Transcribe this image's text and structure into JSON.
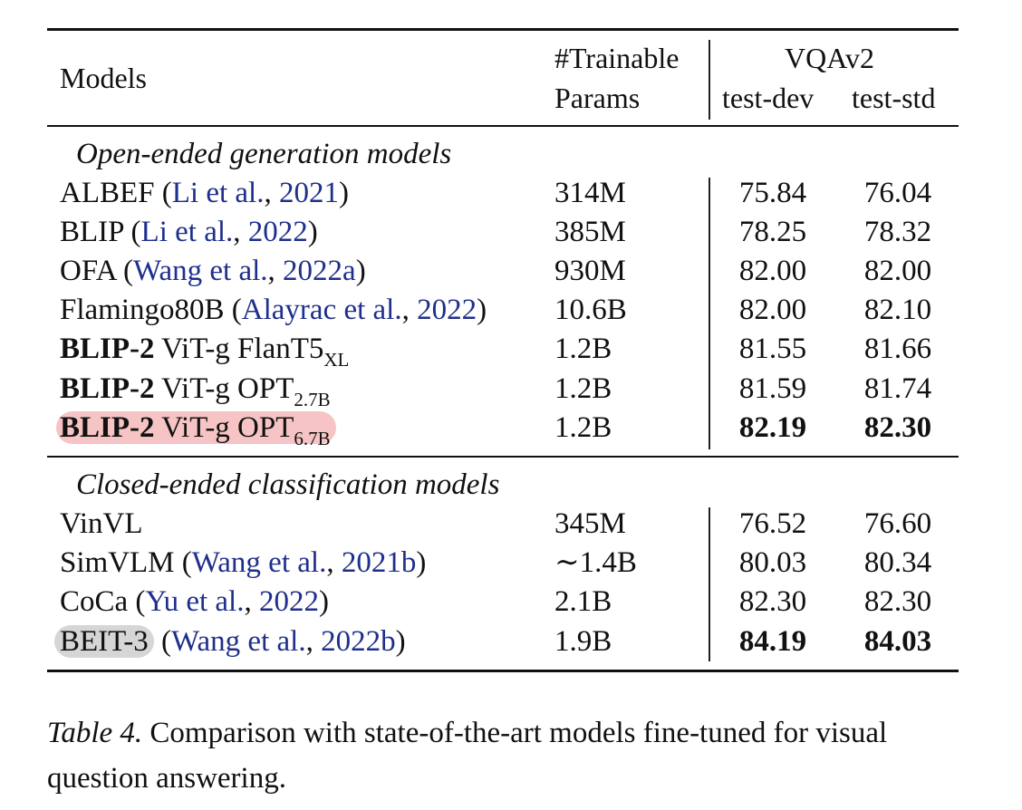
{
  "table": {
    "header": {
      "models": "Models",
      "params_line1": "#Trainable",
      "params_line2": "Params",
      "vqa": "VQAv2",
      "test_dev": "test-dev",
      "test_std": "test-std"
    },
    "groups": [
      {
        "title": "Open-ended generation models",
        "rows": [
          {
            "name": "ALBEF",
            "open": " (",
            "cite": "Li et al.",
            "sep": ", ",
            "year": "2021",
            "close": ")",
            "params": "314M",
            "dev": "75.84",
            "std": "76.04"
          },
          {
            "name": "BLIP",
            "open": " (",
            "cite": "Li et al.",
            "sep": ", ",
            "year": "2022",
            "close": ")",
            "params": "385M",
            "dev": "78.25",
            "std": "78.32"
          },
          {
            "name": "OFA",
            "open": " (",
            "cite": "Wang et al.",
            "sep": ", ",
            "year": "2022a",
            "close": ")",
            "params": "930M",
            "dev": "82.00",
            "std": "82.00"
          },
          {
            "name": "Flamingo80B",
            "open": " (",
            "cite": "Alayrac et al.",
            "sep": ", ",
            "year": "2022",
            "close": ")",
            "params": "10.6B",
            "dev": "82.00",
            "std": "82.10"
          },
          {
            "bold": "BLIP-2",
            "rest": " ViT-g FlanT5",
            "sub": "XL",
            "params": "1.2B",
            "dev": "81.55",
            "std": "81.66"
          },
          {
            "bold": "BLIP-2",
            "rest": " ViT-g OPT",
            "sub": "2.7B",
            "params": "1.2B",
            "dev": "81.59",
            "std": "81.74"
          },
          {
            "bold": "BLIP-2",
            "rest": " ViT-g OPT",
            "sub": "6.7B",
            "params": "1.2B",
            "dev": "82.19",
            "std": "82.30"
          }
        ]
      },
      {
        "title": "Closed-ended classification models",
        "rows": [
          {
            "name": "VinVL",
            "params": "345M",
            "dev": "76.52",
            "std": "76.60"
          },
          {
            "name": "SimVLM",
            "open": " (",
            "cite": "Wang et al.",
            "sep": ", ",
            "year": "2021b",
            "close": ")",
            "params": "∼1.4B",
            "dev": "80.03",
            "std": "80.34"
          },
          {
            "name": "CoCa",
            "open": " (",
            "cite": "Yu et al.",
            "sep": ", ",
            "year": "2022",
            "close": ")",
            "params": "2.1B",
            "dev": "82.30",
            "std": "82.30"
          },
          {
            "name": "BEIT-3",
            "open": " (",
            "cite": "Wang et al.",
            "sep": ", ",
            "year": "2022b",
            "close": ")",
            "params": "1.9B",
            "dev": "84.19",
            "std": "84.03"
          }
        ]
      }
    ]
  },
  "caption": {
    "label": "Table 4.",
    "text": " Comparison with state-of-the-art models fine-tuned for visual question answering."
  },
  "colors": {
    "link": "#1f2f8c",
    "highlight_blip2_row": "#f6c4c4",
    "highlight_beit3": "#d6d6d6"
  }
}
